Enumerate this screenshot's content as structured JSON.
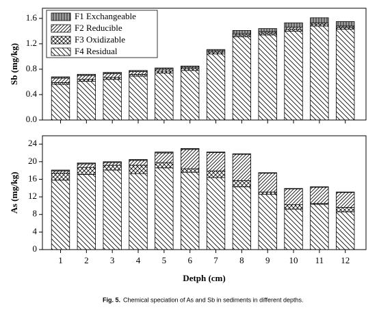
{
  "chart_data": [
    {
      "type": "stacked-bar",
      "ylabel": "Sb (mg/kg)",
      "x": [
        1,
        2,
        3,
        4,
        5,
        6,
        7,
        8,
        9,
        10,
        11,
        12
      ],
      "xlim": [
        0.3,
        12.8
      ],
      "ylim": [
        0,
        1.76
      ],
      "yticks": [
        {
          "value": 0,
          "label": "0.0"
        },
        0.4,
        0.8,
        1.2,
        1.6
      ],
      "legend": "upper left",
      "series": [
        {
          "name": "F4 Residual",
          "color": "#ffffff",
          "pattern": "back-diagonal",
          "values": [
            0.56,
            0.61,
            0.64,
            0.69,
            0.74,
            0.78,
            1.04,
            1.31,
            1.34,
            1.4,
            1.48,
            1.43
          ]
        },
        {
          "name": "F3 Oxidizable",
          "color": "#ffffff",
          "pattern": "cross",
          "values": [
            0.03,
            0.03,
            0.03,
            0.03,
            0.03,
            0.03,
            0.03,
            0.03,
            0.03,
            0.03,
            0.03,
            0.03
          ]
        },
        {
          "name": "F2 Reducible",
          "color": "#ffffff",
          "pattern": "diagonal",
          "values": [
            0.07,
            0.06,
            0.06,
            0.04,
            0.03,
            0.02,
            0.02,
            0.02,
            0.02,
            0.03,
            0.02,
            0.02
          ]
        },
        {
          "name": "F1 Exchangeable",
          "color": "#a0a0a0",
          "pattern": "vertical",
          "values": [
            0.02,
            0.02,
            0.02,
            0.02,
            0.02,
            0.02,
            0.02,
            0.05,
            0.05,
            0.07,
            0.08,
            0.07
          ]
        }
      ]
    },
    {
      "type": "stacked-bar",
      "ylabel": "As (mg/kg)",
      "xlabel": "Detph (cm)",
      "x": [
        1,
        2,
        3,
        4,
        5,
        6,
        7,
        8,
        9,
        10,
        11,
        12
      ],
      "xlim": [
        0.3,
        12.8
      ],
      "xticks": [
        1,
        2,
        3,
        4,
        5,
        6,
        7,
        8,
        9,
        10,
        11,
        12
      ],
      "ylim": [
        0,
        25.9
      ],
      "yticks": [
        0,
        4,
        8,
        12,
        16,
        20,
        24
      ],
      "series": [
        {
          "name": "F4 Residual",
          "color": "#ffffff",
          "pattern": "back-diagonal",
          "values": [
            15.8,
            17.1,
            18.1,
            17.3,
            18.6,
            17.6,
            16.4,
            14.3,
            12.6,
            9.2,
            10.3,
            8.6
          ]
        },
        {
          "name": "F3 Oxidizable",
          "color": "#ffffff",
          "pattern": "cross",
          "values": [
            1.6,
            1.6,
            1.1,
            1.9,
            1.2,
            0.8,
            1.5,
            1.4,
            0.5,
            1.0,
            0.2,
            1.0
          ]
        },
        {
          "name": "F2 Reducible",
          "color": "#ffffff",
          "pattern": "diagonal",
          "values": [
            0.5,
            0.8,
            0.6,
            1.1,
            2.2,
            4.4,
            4.2,
            6.0,
            4.3,
            3.6,
            3.7,
            3.4
          ]
        },
        {
          "name": "F1 Exchangeable",
          "color": "#a0a0a0",
          "pattern": "vertical",
          "values": [
            0.2,
            0.2,
            0.2,
            0.2,
            0.2,
            0.2,
            0.1,
            0.1,
            0.1,
            0.1,
            0.1,
            0.1
          ]
        }
      ]
    }
  ],
  "caption": {
    "label": "Fig. 5.",
    "text": "Chemical speciation of As and Sb in sediments in different depths."
  }
}
